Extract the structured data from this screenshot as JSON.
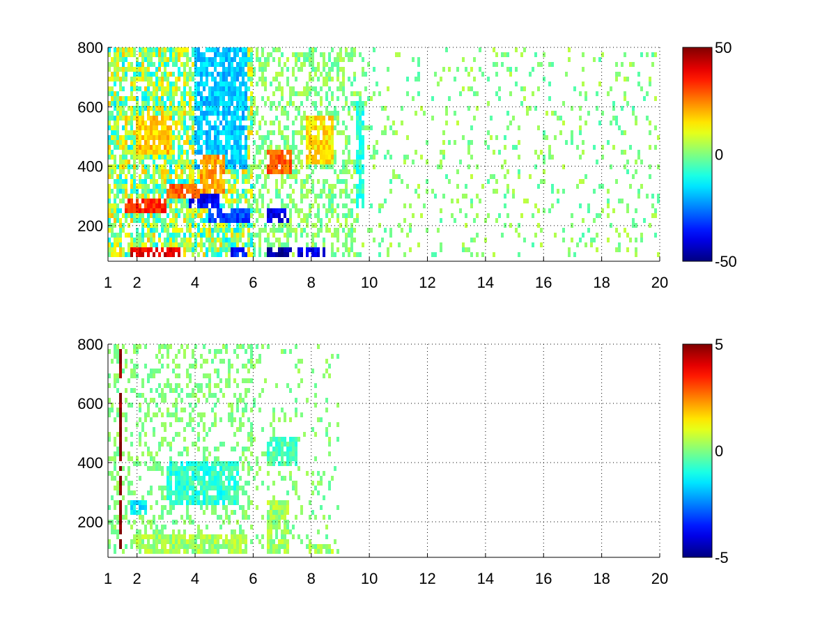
{
  "chart_data": [
    {
      "type": "heatmap",
      "title": "",
      "xlabel": "",
      "ylabel": "",
      "xlim": [
        1,
        20
      ],
      "ylim": [
        80,
        800
      ],
      "xticks": [
        1,
        2,
        4,
        6,
        8,
        10,
        12,
        14,
        16,
        18,
        20
      ],
      "xtick_labels": [
        "1",
        "2",
        "4",
        "6",
        "8",
        "10",
        "12",
        "14",
        "16",
        "18",
        "20"
      ],
      "yticks": [
        200,
        400,
        600,
        800
      ],
      "ytick_labels": [
        "200",
        "400",
        "600",
        "800"
      ],
      "grid": true,
      "colormap": "jet",
      "colorbar": {
        "clim": [
          -50,
          50
        ],
        "tick_labels": [
          "50",
          "0",
          "-50"
        ],
        "ticks": [
          50,
          0,
          -50
        ]
      },
      "blobs": [
        {
          "x": [
            1.8,
            3.6
          ],
          "y": [
            85,
            120
          ],
          "value": 40
        },
        {
          "x": [
            1.6,
            3.0
          ],
          "y": [
            225,
            270
          ],
          "value": 33
        },
        {
          "x": [
            2.0,
            3.2
          ],
          "y": [
            430,
            560
          ],
          "value": 18
        },
        {
          "x": [
            3.0,
            4.2
          ],
          "y": [
            280,
            330
          ],
          "value": 28
        },
        {
          "x": [
            3.8,
            4.8
          ],
          "y": [
            240,
            300
          ],
          "value": -38
        },
        {
          "x": [
            4.2,
            5.0
          ],
          "y": [
            300,
            420
          ],
          "value": 22
        },
        {
          "x": [
            4.0,
            5.8
          ],
          "y": [
            380,
            800
          ],
          "value": -18
        },
        {
          "x": [
            5.2,
            5.8
          ],
          "y": [
            85,
            120
          ],
          "value": -36
        },
        {
          "x": [
            4.5,
            5.9
          ],
          "y": [
            200,
            240
          ],
          "value": -30
        },
        {
          "x": [
            6.5,
            7.3
          ],
          "y": [
            85,
            120
          ],
          "value": -48
        },
        {
          "x": [
            6.5,
            7.2
          ],
          "y": [
            200,
            240
          ],
          "value": -40
        },
        {
          "x": [
            6.5,
            7.3
          ],
          "y": [
            360,
            440
          ],
          "value": 28
        },
        {
          "x": [
            7.5,
            8.5
          ],
          "y": [
            85,
            120
          ],
          "value": -40
        },
        {
          "x": [
            7.8,
            8.8
          ],
          "y": [
            400,
            560
          ],
          "value": 15
        },
        {
          "x": [
            9.5,
            9.8
          ],
          "y": [
            250,
            600
          ],
          "value": -8
        }
      ]
    },
    {
      "type": "heatmap",
      "title": "",
      "xlabel": "",
      "ylabel": "",
      "xlim": [
        1,
        20
      ],
      "ylim": [
        80,
        800
      ],
      "xticks": [
        1,
        2,
        4,
        6,
        8,
        10,
        12,
        14,
        16,
        18,
        20
      ],
      "xtick_labels": [
        "1",
        "2",
        "4",
        "6",
        "8",
        "10",
        "12",
        "14",
        "16",
        "18",
        "20"
      ],
      "yticks": [
        200,
        400,
        600,
        800
      ],
      "ytick_labels": [
        "200",
        "400",
        "600",
        "800"
      ],
      "grid": true,
      "colormap": "jet",
      "colorbar": {
        "clim": [
          -5,
          5
        ],
        "tick_labels": [
          "5",
          "0",
          "-5"
        ],
        "ticks": [
          5,
          0,
          -5
        ]
      },
      "blobs": [
        {
          "x": [
            1.4,
            1.45
          ],
          "y": [
            80,
            770
          ],
          "value": 5
        },
        {
          "x": [
            1.8,
            2.3
          ],
          "y": [
            220,
            260
          ],
          "value": -1.5
        },
        {
          "x": [
            2.0,
            5.8
          ],
          "y": [
            85,
            140
          ],
          "value": 0.3
        },
        {
          "x": [
            3.0,
            5.5
          ],
          "y": [
            250,
            400
          ],
          "value": -0.8
        },
        {
          "x": [
            6.5,
            7.2
          ],
          "y": [
            85,
            260
          ],
          "value": 0.3
        },
        {
          "x": [
            6.5,
            7.5
          ],
          "y": [
            380,
            480
          ],
          "value": -0.5
        },
        {
          "x": [
            7.8,
            8.8
          ],
          "y": [
            85,
            120
          ],
          "value": 0.3
        }
      ]
    }
  ]
}
